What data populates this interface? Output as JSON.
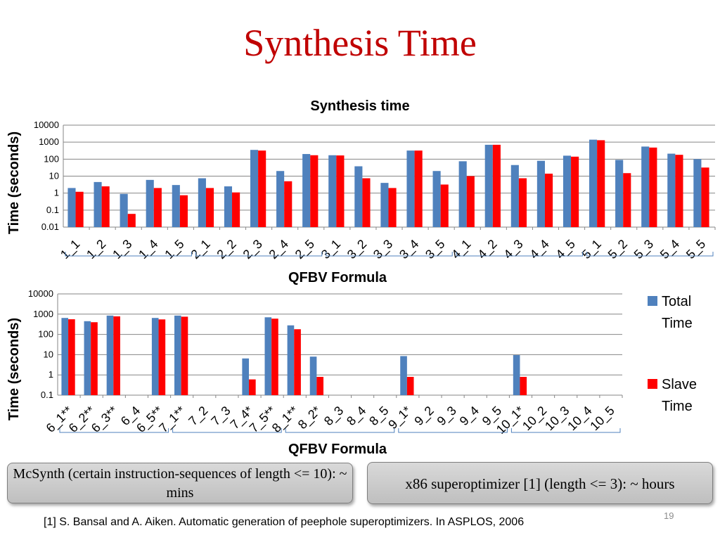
{
  "slide": {
    "title": "Synthesis Time",
    "page_number": "19",
    "footnote": "[1] S. Bansal and A. Aiken. Automatic generation of peephole superoptimizers. In ASPLOS, 2006",
    "callout_left": "McSynth (certain instruction-sequences of length <= 10): ~ mins",
    "callout_right": "x86 superoptimizer [1] (length <= 3): ~ hours"
  },
  "colors": {
    "total": "#4f81bd",
    "slave": "#ff0000",
    "title": "#c00000"
  },
  "chart_data": [
    {
      "type": "bar",
      "title": "Synthesis time",
      "xlabel": "QFBV Formula",
      "ylabel": "Time (seconds)",
      "yscale": "log",
      "ylim": [
        0.01,
        10000
      ],
      "yticks": [
        "0.01",
        "0.1",
        "1",
        "10",
        "100",
        "1000",
        "10000"
      ],
      "grid": true,
      "categories": [
        "1_1",
        "1_2",
        "1_3",
        "1_4",
        "1_5",
        "2_1",
        "2_2",
        "2_3",
        "2_4",
        "2_5",
        "3_1",
        "3_2",
        "3_3",
        "3_4",
        "3_5",
        "4_1",
        "4_2",
        "4_3",
        "4_4",
        "4_5",
        "5_1",
        "5_2",
        "5_3",
        "5_4",
        "5_5"
      ],
      "series": [
        {
          "name": "Total Time",
          "values": [
            2,
            4.5,
            0.9,
            6,
            3,
            7.5,
            2.5,
            350,
            20,
            200,
            170,
            38,
            4,
            320,
            20,
            75,
            700,
            45,
            80,
            160,
            1400,
            90,
            550,
            210,
            100
          ]
        },
        {
          "name": "Slave Time",
          "values": [
            1.2,
            2.5,
            0.06,
            2,
            0.75,
            2,
            1.1,
            320,
            5,
            170,
            165,
            7.5,
            2,
            320,
            3.2,
            10,
            700,
            7.5,
            14,
            140,
            1300,
            15,
            480,
            180,
            32
          ]
        }
      ]
    },
    {
      "type": "bar",
      "xlabel": "QFBV Formula",
      "ylabel": "Time (seconds)",
      "yscale": "log",
      "ylim": [
        0.1,
        10000
      ],
      "yticks": [
        "0.1",
        "1",
        "10",
        "100",
        "1000",
        "10000"
      ],
      "grid": true,
      "legend": "right",
      "categories": [
        "6_1**",
        "6_2**",
        "6_3**",
        "6_4",
        "6_5**",
        "7_1**",
        "7_2",
        "7_3",
        "7_4*",
        "7_5**",
        "8_1**",
        "8_2*",
        "8_3",
        "8_4",
        "8_5",
        "9_1*",
        "9_2",
        "9_3",
        "9_4",
        "9_5",
        "10_1*",
        "10_2",
        "10_3",
        "10_4",
        "10_5"
      ],
      "series": [
        {
          "name": "Total Time",
          "values": [
            650,
            450,
            850,
            null,
            650,
            850,
            null,
            null,
            6.5,
            700,
            280,
            8,
            null,
            null,
            null,
            8.5,
            null,
            null,
            null,
            null,
            9.5,
            null,
            null,
            null,
            null
          ]
        },
        {
          "name": "Slave Time",
          "values": [
            560,
            400,
            780,
            null,
            550,
            750,
            null,
            null,
            0.6,
            600,
            180,
            0.8,
            null,
            null,
            null,
            0.8,
            null,
            null,
            null,
            null,
            0.8,
            null,
            null,
            null,
            null
          ]
        }
      ]
    }
  ]
}
